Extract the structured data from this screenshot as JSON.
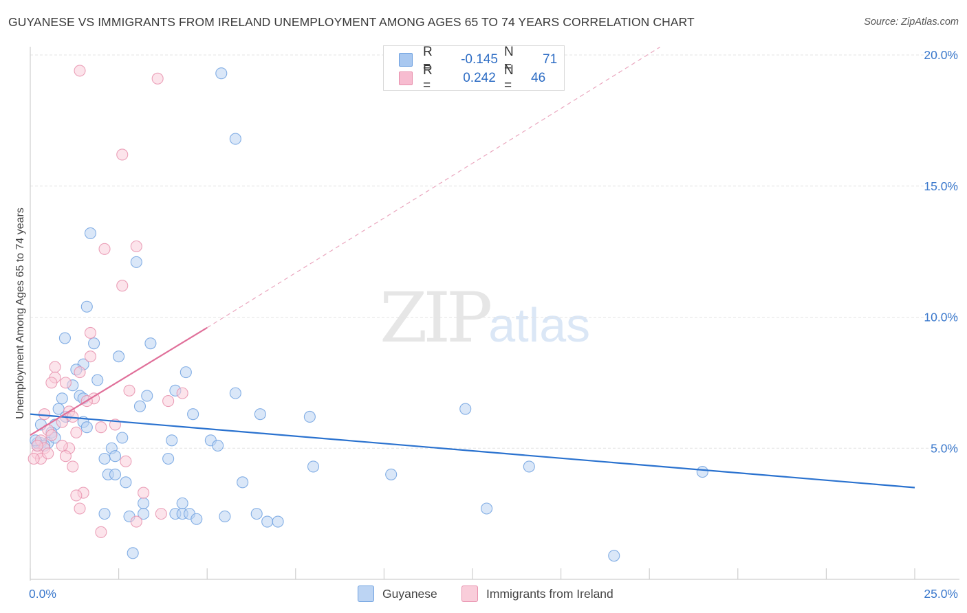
{
  "title": "GUYANESE VS IMMIGRANTS FROM IRELAND UNEMPLOYMENT AMONG AGES 65 TO 74 YEARS CORRELATION CHART",
  "source": "Source: ZipAtlas.com",
  "watermark": {
    "zip": "ZIP",
    "atlas": "atlas"
  },
  "legend": {
    "rows": [
      {
        "r_label": "R =",
        "r_value": "-0.145",
        "n_label": "N =",
        "n_value": "71",
        "color": "#a9c8f0"
      },
      {
        "r_label": "R =",
        "r_value": "0.242",
        "n_label": "N =",
        "n_value": "46",
        "color": "#f7bcd0"
      }
    ]
  },
  "bottom_legend": {
    "series1": "Guyanese",
    "series2": "Immigrants from Ireland"
  },
  "chart_data": {
    "type": "scatter",
    "title": "GUYANESE VS IMMIGRANTS FROM IRELAND UNEMPLOYMENT AMONG AGES 65 TO 74 YEARS CORRELATION CHART",
    "xlabel": "",
    "ylabel": "Unemployment Among Ages 65 to 74 years",
    "xlim": [
      0,
      25
    ],
    "ylim": [
      0,
      20
    ],
    "x_tick_labels": [
      "0.0%",
      "25.0%"
    ],
    "y_ticks": [
      5,
      10,
      15,
      20
    ],
    "y_tick_labels": [
      "5.0%",
      "10.0%",
      "15.0%",
      "20.0%"
    ],
    "grid": true,
    "series": [
      {
        "name": "Guyanese",
        "color": "#6fa1e0",
        "fill": "#bcd4f3",
        "trend": {
          "x": [
            0,
            25
          ],
          "y": [
            6.3,
            3.5
          ]
        },
        "points": [
          [
            5.4,
            19.3
          ],
          [
            5.8,
            16.8
          ],
          [
            1.7,
            13.2
          ],
          [
            3.0,
            12.1
          ],
          [
            1.6,
            10.4
          ],
          [
            0.98,
            9.2
          ],
          [
            1.8,
            9.0
          ],
          [
            3.4,
            9.0
          ],
          [
            2.5,
            8.5
          ],
          [
            1.5,
            8.2
          ],
          [
            1.3,
            8.0
          ],
          [
            4.4,
            7.9
          ],
          [
            1.9,
            7.6
          ],
          [
            1.2,
            7.4
          ],
          [
            4.1,
            7.2
          ],
          [
            5.8,
            7.1
          ],
          [
            1.4,
            7.0
          ],
          [
            3.3,
            7.0
          ],
          [
            1.5,
            6.9
          ],
          [
            0.9,
            6.9
          ],
          [
            3.1,
            6.6
          ],
          [
            0.8,
            6.5
          ],
          [
            4.6,
            6.3
          ],
          [
            6.5,
            6.3
          ],
          [
            7.9,
            6.2
          ],
          [
            12.3,
            6.5
          ],
          [
            1.5,
            6.0
          ],
          [
            1.6,
            5.8
          ],
          [
            0.7,
            5.9
          ],
          [
            0.3,
            5.9
          ],
          [
            0.6,
            5.6
          ],
          [
            2.6,
            5.4
          ],
          [
            4.0,
            5.3
          ],
          [
            5.1,
            5.3
          ],
          [
            5.3,
            5.1
          ],
          [
            0.5,
            5.2
          ],
          [
            0.3,
            5.2
          ],
          [
            2.3,
            5.0
          ],
          [
            0.2,
            5.1
          ],
          [
            2.4,
            4.7
          ],
          [
            2.1,
            4.6
          ],
          [
            3.9,
            4.6
          ],
          [
            8.0,
            4.3
          ],
          [
            14.1,
            4.3
          ],
          [
            19.0,
            4.1
          ],
          [
            2.2,
            4.0
          ],
          [
            2.4,
            4.0
          ],
          [
            10.2,
            4.0
          ],
          [
            2.7,
            3.7
          ],
          [
            6.0,
            3.7
          ],
          [
            3.2,
            2.9
          ],
          [
            4.3,
            2.9
          ],
          [
            12.9,
            2.7
          ],
          [
            4.1,
            2.5
          ],
          [
            4.3,
            2.5
          ],
          [
            4.5,
            2.5
          ],
          [
            2.1,
            2.5
          ],
          [
            3.2,
            2.5
          ],
          [
            6.4,
            2.5
          ],
          [
            2.8,
            2.4
          ],
          [
            5.5,
            2.4
          ],
          [
            4.7,
            2.3
          ],
          [
            6.7,
            2.2
          ],
          [
            7.0,
            2.2
          ],
          [
            2.9,
            1.0
          ],
          [
            16.5,
            0.9
          ],
          [
            0.2,
            5.2
          ],
          [
            0.4,
            5.1
          ],
          [
            0.15,
            5.3
          ],
          [
            1.0,
            6.2
          ],
          [
            0.7,
            5.4
          ]
        ]
      },
      {
        "name": "Immigrants from Ireland",
        "color": "#e890ad",
        "fill": "#f9cdda",
        "trend": {
          "x": [
            0,
            5.0
          ],
          "y": [
            5.5,
            9.6
          ]
        },
        "trend_extended": {
          "x": [
            5.0,
            17.8
          ],
          "y": [
            9.6,
            20.3
          ]
        },
        "points": [
          [
            1.4,
            19.4
          ],
          [
            3.6,
            19.1
          ],
          [
            2.6,
            16.2
          ],
          [
            3.0,
            12.7
          ],
          [
            2.1,
            12.6
          ],
          [
            2.6,
            11.2
          ],
          [
            1.7,
            9.4
          ],
          [
            1.7,
            8.5
          ],
          [
            0.7,
            8.1
          ],
          [
            1.4,
            7.9
          ],
          [
            0.7,
            7.7
          ],
          [
            0.6,
            7.5
          ],
          [
            1.0,
            7.5
          ],
          [
            2.8,
            7.2
          ],
          [
            4.3,
            7.1
          ],
          [
            1.8,
            6.9
          ],
          [
            3.9,
            6.8
          ],
          [
            1.6,
            6.8
          ],
          [
            1.1,
            6.4
          ],
          [
            0.4,
            6.3
          ],
          [
            1.2,
            6.2
          ],
          [
            0.9,
            6.0
          ],
          [
            2.0,
            5.8
          ],
          [
            2.4,
            5.9
          ],
          [
            0.5,
            5.7
          ],
          [
            0.6,
            5.5
          ],
          [
            1.3,
            5.6
          ],
          [
            0.3,
            5.3
          ],
          [
            0.4,
            5.0
          ],
          [
            1.1,
            5.0
          ],
          [
            0.9,
            5.1
          ],
          [
            0.2,
            4.8
          ],
          [
            1.0,
            4.7
          ],
          [
            0.3,
            4.6
          ],
          [
            0.1,
            4.6
          ],
          [
            0.5,
            4.8
          ],
          [
            2.7,
            4.5
          ],
          [
            1.2,
            4.3
          ],
          [
            1.5,
            3.3
          ],
          [
            1.3,
            3.2
          ],
          [
            3.2,
            3.3
          ],
          [
            1.4,
            2.7
          ],
          [
            3.7,
            2.5
          ],
          [
            3.0,
            2.2
          ],
          [
            2.0,
            1.8
          ],
          [
            0.2,
            5.1
          ]
        ]
      }
    ]
  }
}
